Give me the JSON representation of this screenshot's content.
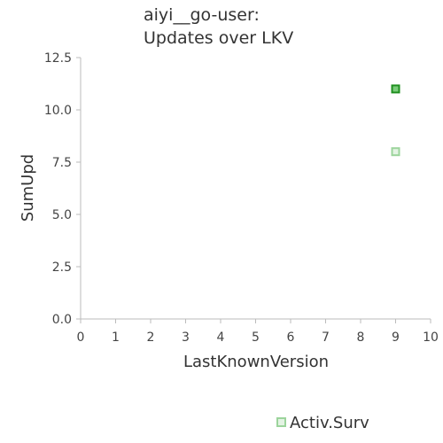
{
  "chart_data": {
    "type": "scatter",
    "title": [
      "aiyi__go-user:",
      "Updates over LKV"
    ],
    "xlabel": "LastKnownVersion",
    "ylabel": "SumUpd",
    "xlim": [
      0,
      10
    ],
    "ylim": [
      0,
      12.5
    ],
    "x_ticks": [
      "0",
      "1",
      "2",
      "3",
      "4",
      "5",
      "6",
      "7",
      "8",
      "9",
      "10"
    ],
    "y_ticks": [
      "0.0",
      "2.5",
      "5.0",
      "7.5",
      "10.0",
      "12.5"
    ],
    "grid": false,
    "legend_position": "bottom-right",
    "series": [
      {
        "name": "Activ.Surv",
        "color": "#8fd18f",
        "points": [
          {
            "x": 9,
            "y": 11,
            "emphasis": true
          },
          {
            "x": 9,
            "y": 8,
            "emphasis": false
          }
        ]
      }
    ],
    "colors": {
      "emphasis_fill": "#7acc7a",
      "emphasis_stroke": "#1f8f1f",
      "normal_fill": "#e3f3e3",
      "normal_stroke": "#9cd49c"
    }
  }
}
